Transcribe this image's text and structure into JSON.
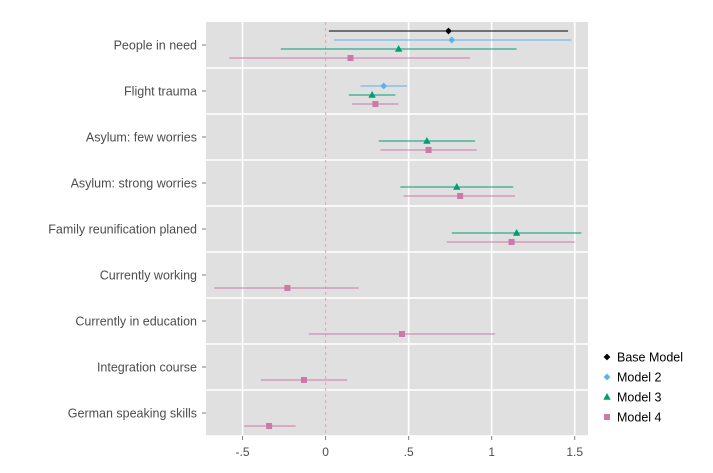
{
  "chart_data": {
    "type": "scatter",
    "subtype": "coefficient-plot",
    "title": "",
    "xlabel": "",
    "ylabel": "",
    "xlim": [
      -0.72,
      1.58
    ],
    "x_ticks": [
      -0.5,
      0,
      0.5,
      1,
      1.5
    ],
    "x_tick_labels": [
      "-.5",
      "0",
      ".5",
      "1",
      "1.5"
    ],
    "reference_line": {
      "x": 0,
      "style": "dashed",
      "color": "#f4a3c0"
    },
    "grid": true,
    "background": "#e0e0e0",
    "legend_position": "right",
    "categories": [
      "People in need",
      "Flight trauma",
      "Asylum: few worries",
      "Asylum: strong worries",
      "Family reunification planed",
      "Currently working",
      "Currently in education",
      "Integration course",
      "German speaking skills"
    ],
    "series": [
      {
        "name": "Base Model",
        "color": "#000000",
        "marker": "diamond",
        "points": [
          {
            "category": "People in need",
            "estimate": 0.74,
            "lower": 0.02,
            "upper": 1.46
          }
        ]
      },
      {
        "name": "Model 2",
        "color": "#56b4e9",
        "marker": "diamond",
        "points": [
          {
            "category": "People in need",
            "estimate": 0.76,
            "lower": 0.05,
            "upper": 1.48
          },
          {
            "category": "Flight trauma",
            "estimate": 0.35,
            "lower": 0.21,
            "upper": 0.49
          }
        ]
      },
      {
        "name": "Model 3",
        "color": "#009e73",
        "marker": "triangle",
        "points": [
          {
            "category": "People in need",
            "estimate": 0.44,
            "lower": -0.27,
            "upper": 1.15
          },
          {
            "category": "Flight trauma",
            "estimate": 0.28,
            "lower": 0.14,
            "upper": 0.42
          },
          {
            "category": "Asylum: few worries",
            "estimate": 0.61,
            "lower": 0.32,
            "upper": 0.9
          },
          {
            "category": "Asylum: strong worries",
            "estimate": 0.79,
            "lower": 0.45,
            "upper": 1.13
          },
          {
            "category": "Family reunification planed",
            "estimate": 1.15,
            "lower": 0.76,
            "upper": 1.54
          }
        ]
      },
      {
        "name": "Model 4",
        "color": "#cc79a7",
        "marker": "square",
        "points": [
          {
            "category": "People in need",
            "estimate": 0.15,
            "lower": -0.58,
            "upper": 0.87
          },
          {
            "category": "Flight trauma",
            "estimate": 0.3,
            "lower": 0.16,
            "upper": 0.44
          },
          {
            "category": "Asylum: few worries",
            "estimate": 0.62,
            "lower": 0.33,
            "upper": 0.91
          },
          {
            "category": "Asylum: strong worries",
            "estimate": 0.81,
            "lower": 0.47,
            "upper": 1.14
          },
          {
            "category": "Family reunification planed",
            "estimate": 1.12,
            "lower": 0.73,
            "upper": 1.5
          },
          {
            "category": "Currently working",
            "estimate": -0.23,
            "lower": -0.67,
            "upper": 0.2
          },
          {
            "category": "Currently in education",
            "estimate": 0.46,
            "lower": -0.1,
            "upper": 1.02
          },
          {
            "category": "Integration course",
            "estimate": -0.13,
            "lower": -0.39,
            "upper": 0.13
          },
          {
            "category": "German speaking skills",
            "estimate": -0.34,
            "lower": -0.49,
            "upper": -0.18
          }
        ]
      }
    ]
  }
}
